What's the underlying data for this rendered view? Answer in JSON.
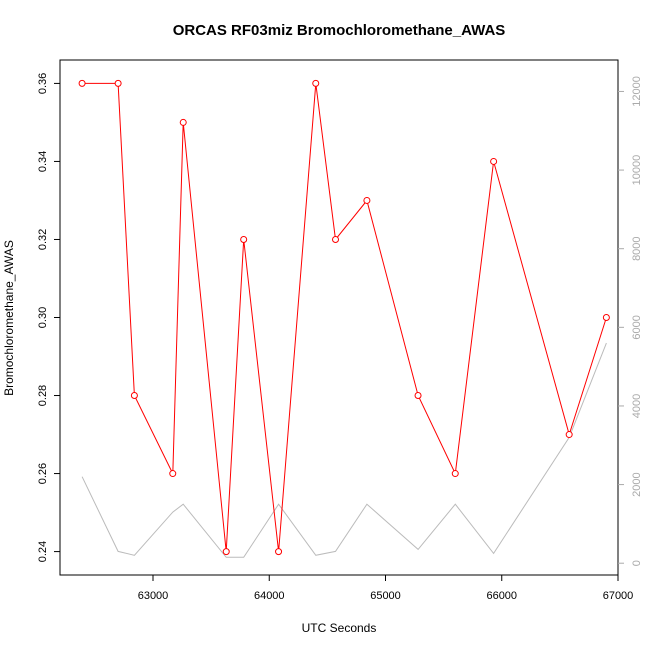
{
  "chart_data": {
    "type": "line",
    "title": "ORCAS RF03miz Bromochloromethane_AWAS",
    "xlabel": "UTC Seconds",
    "ylabel": "Bromochloromethane_AWAS",
    "xlim": [
      62200,
      67000
    ],
    "ylim": [
      0.234,
      0.366
    ],
    "y2lim": [
      -300,
      12800
    ],
    "x_ticks": [
      63000,
      64000,
      65000,
      66000,
      67000
    ],
    "y_ticks": [
      0.24,
      0.26,
      0.28,
      0.3,
      0.32,
      0.34,
      0.36
    ],
    "y_tick_labels": [
      "0.24",
      "0.26",
      "0.28",
      "0.30",
      "0.32",
      "0.34",
      "0.36"
    ],
    "y2_ticks": [
      0,
      2000,
      4000,
      6000,
      8000,
      10000,
      12000
    ],
    "series": [
      {
        "color": "#ff0000",
        "axis": "left",
        "marker": "circle",
        "x": [
          62390,
          62700,
          62840,
          63170,
          63260,
          63630,
          63780,
          64080,
          64400,
          64570,
          64840,
          65280,
          65600,
          65930,
          66580,
          66900
        ],
        "y": [
          0.36,
          0.36,
          0.28,
          0.26,
          0.35,
          0.24,
          0.32,
          0.24,
          0.36,
          0.32,
          0.33,
          0.28,
          0.26,
          0.34,
          0.27,
          0.3
        ]
      },
      {
        "color": "#bbbbbb",
        "axis": "right",
        "marker": "none",
        "x": [
          62390,
          62700,
          62840,
          63170,
          63260,
          63630,
          63780,
          64080,
          64400,
          64570,
          64840,
          65280,
          65600,
          65930,
          66580,
          66900
        ],
        "y": [
          2200,
          300,
          200,
          1300,
          1500,
          150,
          150,
          1500,
          200,
          300,
          1500,
          350,
          1500,
          250,
          3200,
          5600
        ]
      }
    ]
  }
}
